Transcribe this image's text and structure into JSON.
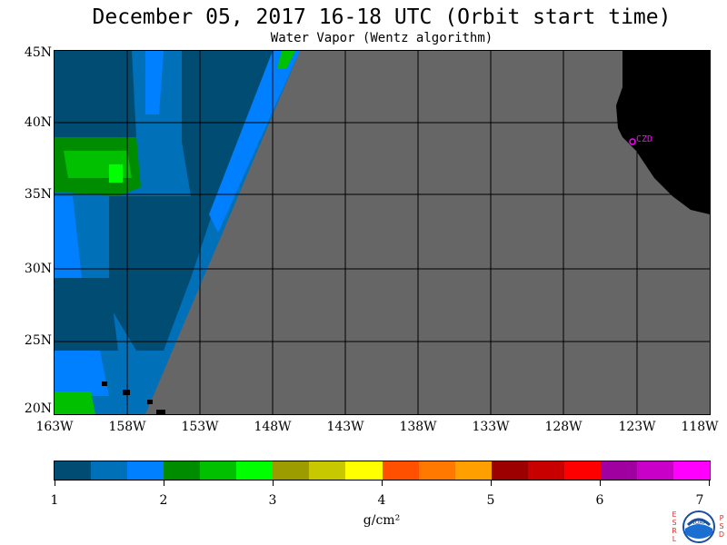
{
  "title": "December 05, 2017  16-18 UTC  (Orbit start time)",
  "subtitle": "Water Vapor (Wentz algorithm)",
  "map": {
    "lat_labels": [
      "45N",
      "40N",
      "35N",
      "30N",
      "25N",
      "20N"
    ],
    "lon_labels": [
      "163W",
      "158W",
      "153W",
      "148W",
      "143W",
      "138W",
      "133W",
      "128W",
      "123W",
      "118W"
    ],
    "station_label": "CZD"
  },
  "colorbar": {
    "ticks": [
      "1",
      "2",
      "3",
      "4",
      "5",
      "6",
      "7"
    ],
    "units": "g/cm²",
    "colors": [
      "#004c73",
      "#0070b8",
      "#0080ff",
      "#008c00",
      "#00c000",
      "#00ff00",
      "#9c9c00",
      "#c8c800",
      "#ffff00",
      "#ff5000",
      "#ff7800",
      "#ffa000",
      "#9c0000",
      "#c80000",
      "#ff0000",
      "#a000a0",
      "#c800c8",
      "#ff00ff"
    ]
  },
  "logo": {
    "left_letters": "ESRL",
    "right_letters": "PSD",
    "text": "NOAA"
  }
}
